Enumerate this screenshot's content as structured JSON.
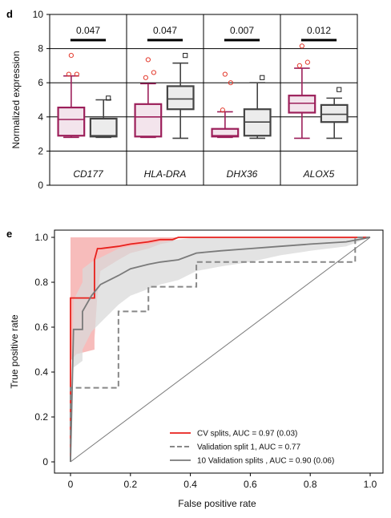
{
  "chart_data": [
    {
      "panel": "d",
      "type": "box",
      "ylabel": "Normalized expression",
      "ylim": [
        0,
        10
      ],
      "yticks": [
        "0",
        "2",
        "4",
        "6",
        "8",
        "10"
      ],
      "groups": [
        {
          "gene": "CD177",
          "pvalue": "0.047",
          "boxes": [
            {
              "whisker_low": 2.8,
              "q1": 2.9,
              "median": 3.85,
              "q3": 4.55,
              "whisker_high": 6.4,
              "outliers": [
                6.5,
                6.5,
                7.6
              ],
              "color": "#9c1f5a",
              "fill": "#f3e4ec"
            },
            {
              "whisker_low": 2.8,
              "q1": 2.85,
              "median": 2.9,
              "q3": 3.9,
              "whisker_high": 5.0,
              "outliers": [
                5.1
              ],
              "color": "#444444",
              "fill": "#ececec"
            }
          ]
        },
        {
          "gene": "HLA-DRA",
          "pvalue": "0.047",
          "boxes": [
            {
              "whisker_low": 2.8,
              "q1": 2.85,
              "median": 4.0,
              "q3": 4.75,
              "whisker_high": 5.95,
              "outliers": [
                6.3,
                6.6,
                7.35
              ],
              "color": "#9c1f5a",
              "fill": "#f3e4ec"
            },
            {
              "whisker_low": 2.75,
              "q1": 4.45,
              "median": 5.05,
              "q3": 5.8,
              "whisker_high": 7.15,
              "outliers": [
                7.6
              ],
              "color": "#444444",
              "fill": "#ececec"
            }
          ]
        },
        {
          "gene": "DHX36",
          "pvalue": "0.007",
          "boxes": [
            {
              "whisker_low": 2.8,
              "q1": 2.85,
              "median": 2.9,
              "q3": 3.3,
              "whisker_high": 4.3,
              "outliers": [
                4.4,
                6.0,
                6.5
              ],
              "color": "#9c1f5a",
              "fill": "#f3e4ec"
            },
            {
              "whisker_low": 2.75,
              "q1": 2.9,
              "median": 3.7,
              "q3": 4.45,
              "whisker_high": 6.0,
              "outliers": [
                6.3
              ],
              "color": "#444444",
              "fill": "#ececec"
            }
          ]
        },
        {
          "gene": "ALOX5",
          "pvalue": "0.012",
          "boxes": [
            {
              "whisker_low": 2.75,
              "q1": 4.25,
              "median": 4.8,
              "q3": 5.25,
              "whisker_high": 6.85,
              "outliers": [
                7.0,
                7.2,
                8.15
              ],
              "color": "#9c1f5a",
              "fill": "#f3e4ec"
            },
            {
              "whisker_low": 2.75,
              "q1": 3.7,
              "median": 4.15,
              "q3": 4.7,
              "whisker_high": 5.1,
              "outliers": [
                5.6
              ],
              "color": "#444444",
              "fill": "#ececec"
            }
          ]
        }
      ]
    },
    {
      "panel": "e",
      "type": "line",
      "xlabel": "False positive rate",
      "ylabel": "True positive rate",
      "xlim": [
        0,
        1
      ],
      "ylim": [
        0,
        1
      ],
      "xticks": [
        "0",
        "0.2",
        "0.4",
        "0.6",
        "0.8",
        "1.0"
      ],
      "yticks": [
        "0",
        "0.2",
        "0.4",
        "0.6",
        "0.8",
        "1.0"
      ],
      "series": [
        {
          "name": "CV splits, AUC = 0.97 (0.03)",
          "color": "#e8201c",
          "dash": "solid",
          "x": [
            0,
            0,
            0.02,
            0.08,
            0.08,
            0.09,
            0.1,
            0.16,
            0.2,
            0.26,
            0.3,
            0.34,
            0.36,
            1.0
          ],
          "y": [
            0,
            0.73,
            0.73,
            0.73,
            0.9,
            0.95,
            0.95,
            0.96,
            0.97,
            0.98,
            0.99,
            0.99,
            1.0,
            1.0
          ],
          "band_low": [
            0,
            0.45,
            0.48,
            0.5,
            0.55,
            0.75,
            0.85,
            0.9,
            0.93,
            0.95,
            0.97,
            0.98,
            1.0,
            1.0
          ],
          "band_high": [
            0,
            1.0,
            1.0,
            1.0,
            1.0,
            1.0,
            1.0,
            1.0,
            1.0,
            1.0,
            1.0,
            1.0,
            1.0,
            1.0
          ],
          "band_color": "#f4a6a4"
        },
        {
          "name": "Validation split 1, AUC = 0.77",
          "color": "#888888",
          "dash": "dashed",
          "x": [
            0,
            0,
            0.16,
            0.16,
            0.16,
            0.26,
            0.26,
            0.42,
            0.42,
            0.95,
            0.95,
            1.0
          ],
          "y": [
            0,
            0.33,
            0.33,
            0.56,
            0.67,
            0.67,
            0.78,
            0.78,
            0.89,
            0.89,
            1.0,
            1.0
          ],
          "step": true
        },
        {
          "name": "10 Validation splits , AUC = 0.90 (0.06)",
          "color": "#7a7a7a",
          "dash": "solid",
          "x": [
            0,
            0.01,
            0.04,
            0.04,
            0.07,
            0.1,
            0.13,
            0.16,
            0.2,
            0.26,
            0.3,
            0.36,
            0.42,
            0.5,
            0.6,
            0.7,
            0.8,
            0.92,
            1.0
          ],
          "y": [
            0,
            0.59,
            0.59,
            0.67,
            0.74,
            0.79,
            0.81,
            0.83,
            0.86,
            0.88,
            0.89,
            0.9,
            0.93,
            0.94,
            0.95,
            0.96,
            0.97,
            0.98,
            1.0
          ],
          "band_low": [
            0,
            0.42,
            0.45,
            0.5,
            0.58,
            0.62,
            0.66,
            0.7,
            0.74,
            0.77,
            0.79,
            0.81,
            0.85,
            0.87,
            0.89,
            0.92,
            0.94,
            0.96,
            1.0
          ],
          "band_high": [
            0,
            0.72,
            0.8,
            0.86,
            0.89,
            0.91,
            0.93,
            0.95,
            0.96,
            0.97,
            0.98,
            0.99,
            1.0,
            1.0,
            1.0,
            1.0,
            1.0,
            1.0,
            1.0
          ],
          "band_color": "#d9d9d9"
        },
        {
          "name": "",
          "color": "#7a7a7a",
          "dash": "solid",
          "x": [
            0,
            1
          ],
          "y": [
            0,
            1
          ],
          "role": "diagonal"
        }
      ],
      "legend_position": "bottom-right"
    }
  ],
  "panels": {
    "d_letter": "d",
    "e_letter": "e"
  }
}
